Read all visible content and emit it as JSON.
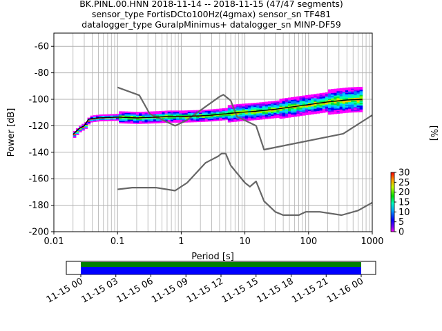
{
  "title_lines": [
    "BK.PINL.00.HNN   2018-11-14 -- 2018-11-15  (47/47 segments)",
    "sensor_type FortisDCto100Hz(4gmax) sensor_sn TF481",
    "datalogger_type GuralpMinimus+ datalogger_sn MINP-DF59"
  ],
  "chart_data": {
    "type": "heatmap",
    "x_scale": "log",
    "xlabel": "Period [s]",
    "ylabel": "Power [dB]",
    "xlim": [
      0.01,
      1000
    ],
    "ylim": [
      -200,
      -50
    ],
    "x_ticks": [
      0.01,
      0.1,
      1,
      10,
      100,
      1000
    ],
    "x_tick_labels": [
      "0.01",
      "0.1",
      "1",
      "10",
      "100",
      "1000"
    ],
    "y_ticks": [
      -200,
      -180,
      -160,
      -140,
      -120,
      -100,
      -80,
      -60
    ],
    "y_tick_labels": [
      "-200",
      "-180",
      "-160",
      "-140",
      "-120",
      "-100",
      "-80",
      "-60"
    ],
    "grid": true,
    "colorbar": {
      "label": "[%]",
      "min": 0,
      "max": 30,
      "ticks": [
        0,
        5,
        10,
        15,
        20,
        25,
        30
      ],
      "tick_labels": [
        "0",
        "5",
        "10",
        "15",
        "20",
        "25",
        "30"
      ]
    },
    "noise_models": [
      {
        "points": [
          [
            0.1,
            -91
          ],
          [
            0.22,
            -97
          ],
          [
            0.32,
            -111
          ],
          [
            0.8,
            -120
          ],
          [
            1.2,
            -116
          ],
          [
            4.0,
            -98
          ],
          [
            4.6,
            -96.5
          ],
          [
            6.0,
            -101
          ],
          [
            7.5,
            -113
          ],
          [
            15,
            -120
          ],
          [
            20,
            -138
          ],
          [
            350,
            -126
          ],
          [
            1000,
            -112
          ]
        ]
      },
      {
        "points": [
          [
            0.1,
            -168
          ],
          [
            0.17,
            -166.7
          ],
          [
            0.4,
            -166.7
          ],
          [
            0.8,
            -169
          ],
          [
            1.24,
            -163
          ],
          [
            2.4,
            -148
          ],
          [
            3.8,
            -143
          ],
          [
            4.3,
            -141
          ],
          [
            5.0,
            -141
          ],
          [
            6.0,
            -150
          ],
          [
            10,
            -163
          ],
          [
            12,
            -166
          ],
          [
            15,
            -162
          ],
          [
            20,
            -177
          ],
          [
            30,
            -185
          ],
          [
            40,
            -187.5
          ],
          [
            70,
            -187.5
          ],
          [
            90,
            -185
          ],
          [
            150,
            -185
          ],
          [
            330,
            -187.5
          ],
          [
            600,
            -184
          ],
          [
            1000,
            -178
          ]
        ]
      }
    ],
    "median_curve": {
      "points": [
        [
          0.02,
          -126.5
        ],
        [
          0.025,
          -122
        ],
        [
          0.03,
          -120
        ],
        [
          0.035,
          -115
        ],
        [
          0.05,
          -114
        ],
        [
          0.1,
          -113.5
        ],
        [
          0.2,
          -114
        ],
        [
          0.4,
          -113.5
        ],
        [
          0.6,
          -113
        ],
        [
          1.0,
          -113
        ],
        [
          2,
          -112.5
        ],
        [
          3,
          -112
        ],
        [
          5,
          -111
        ],
        [
          8,
          -110
        ],
        [
          15,
          -109
        ],
        [
          30,
          -107.5
        ],
        [
          60,
          -105.5
        ],
        [
          100,
          -104
        ],
        [
          200,
          -102
        ],
        [
          400,
          -100.5
        ],
        [
          700,
          -100
        ]
      ]
    }
  },
  "timeline": {
    "x_tick_labels": [
      "11-15 00",
      "11-15 03",
      "11-15 06",
      "11-15 09",
      "11-15 12",
      "11-15 15",
      "11-15 18",
      "11-15 21",
      "11-16 00"
    ]
  }
}
